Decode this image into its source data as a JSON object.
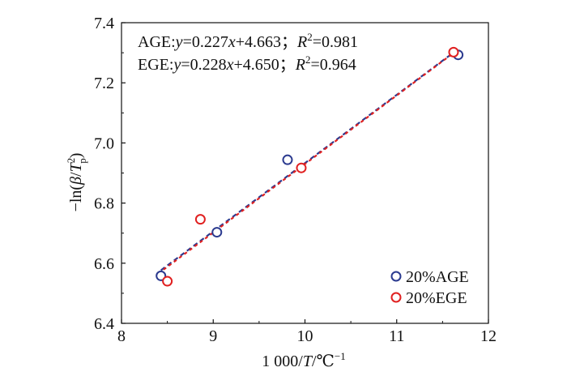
{
  "chart_data": {
    "type": "scatter",
    "xlabel_parts": [
      "1 000/",
      "T",
      "/℃",
      "−1"
    ],
    "ylabel_parts": [
      "−ln(",
      "β",
      "/",
      "T",
      "2",
      "p",
      ")"
    ],
    "xlim": [
      8,
      12
    ],
    "ylim": [
      6.4,
      7.4
    ],
    "xticks": [
      "8",
      "9",
      "10",
      "11",
      "12"
    ],
    "yticks": [
      "6.4",
      "6.6",
      "6.8",
      "7.0",
      "7.2",
      "7.4"
    ],
    "annotations": [
      {
        "label": "AGE:",
        "lhs": "y",
        "eq": "=0.227",
        "x": "x",
        "rest": "+4.663；",
        "r": "R",
        "sup": "2",
        "rval": "=0.981"
      },
      {
        "label": "EGE:",
        "lhs": "y",
        "eq": "=0.228",
        "x": "x",
        "rest": "+4.650；",
        "r": "R",
        "sup": "2",
        "rval": "=0.964"
      }
    ],
    "series": [
      {
        "name": "20%AGE",
        "color": "#2b3a8f",
        "x": [
          8.43,
          9.04,
          9.81,
          11.67
        ],
        "y": [
          6.558,
          6.703,
          6.944,
          7.293
        ],
        "fit": {
          "slope": 0.227,
          "intercept": 4.663
        }
      },
      {
        "name": "20%EGE",
        "color": "#e02020",
        "x": [
          8.5,
          8.86,
          9.96,
          11.62
        ],
        "y": [
          6.54,
          6.746,
          6.917,
          7.302
        ],
        "fit": {
          "slope": 0.228,
          "intercept": 4.65
        }
      }
    ],
    "fit_line_x_range": [
      8.43,
      11.67
    ],
    "legend_position": "bottom-right",
    "grid": false
  }
}
